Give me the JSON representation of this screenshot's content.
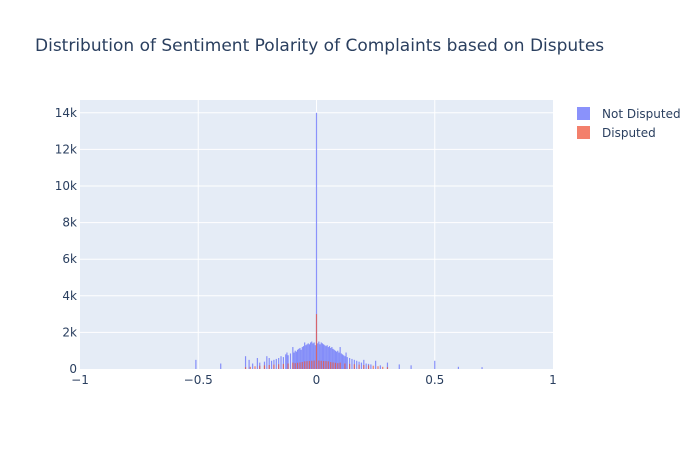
{
  "chart_data": {
    "type": "bar",
    "title": "Distribution of Sentiment Polarity of Complaints based on Disputes",
    "xlabel": "",
    "ylabel": "",
    "xlim": [
      -1,
      1
    ],
    "ylim": [
      0,
      14700
    ],
    "x_ticks": [
      -1,
      -0.5,
      0,
      0.5,
      1
    ],
    "x_tick_labels": [
      "−1",
      "−0.5",
      "0",
      "0.5",
      "1"
    ],
    "y_ticks": [
      0,
      2000,
      4000,
      6000,
      8000,
      10000,
      12000,
      14000
    ],
    "y_tick_labels": [
      "0",
      "2k",
      "4k",
      "6k",
      "8k",
      "10k",
      "12k",
      "14k"
    ],
    "grid": true,
    "legend_position": "top-right",
    "bin_width": 0.005,
    "series": [
      {
        "name": "Not Disputed",
        "color": "#636efa",
        "opacity": 0.75,
        "points": [
          [
            -0.51,
            500
          ],
          [
            -0.405,
            300
          ],
          [
            -0.3,
            700
          ],
          [
            -0.285,
            500
          ],
          [
            -0.27,
            300
          ],
          [
            -0.25,
            600
          ],
          [
            -0.24,
            350
          ],
          [
            -0.22,
            400
          ],
          [
            -0.21,
            700
          ],
          [
            -0.2,
            600
          ],
          [
            -0.19,
            450
          ],
          [
            -0.18,
            500
          ],
          [
            -0.17,
            550
          ],
          [
            -0.16,
            600
          ],
          [
            -0.15,
            700
          ],
          [
            -0.14,
            650
          ],
          [
            -0.13,
            800
          ],
          [
            -0.125,
            900
          ],
          [
            -0.12,
            750
          ],
          [
            -0.11,
            850
          ],
          [
            -0.1,
            1200
          ],
          [
            -0.095,
            900
          ],
          [
            -0.09,
            1000
          ],
          [
            -0.085,
            950
          ],
          [
            -0.08,
            1050
          ],
          [
            -0.075,
            1100
          ],
          [
            -0.07,
            1150
          ],
          [
            -0.065,
            1050
          ],
          [
            -0.06,
            1200
          ],
          [
            -0.055,
            1250
          ],
          [
            -0.05,
            1450
          ],
          [
            -0.045,
            1300
          ],
          [
            -0.04,
            1350
          ],
          [
            -0.035,
            1400
          ],
          [
            -0.03,
            1350
          ],
          [
            -0.025,
            1450
          ],
          [
            -0.02,
            1500
          ],
          [
            -0.015,
            1400
          ],
          [
            -0.01,
            1450
          ],
          [
            -0.005,
            1300
          ],
          [
            0.0,
            14000
          ],
          [
            0.005,
            1400
          ],
          [
            0.01,
            1500
          ],
          [
            0.015,
            1350
          ],
          [
            0.02,
            1450
          ],
          [
            0.025,
            1400
          ],
          [
            0.03,
            1350
          ],
          [
            0.035,
            1300
          ],
          [
            0.04,
            1250
          ],
          [
            0.045,
            1300
          ],
          [
            0.05,
            1200
          ],
          [
            0.055,
            1250
          ],
          [
            0.06,
            1150
          ],
          [
            0.065,
            1200
          ],
          [
            0.07,
            1100
          ],
          [
            0.075,
            1050
          ],
          [
            0.08,
            1000
          ],
          [
            0.085,
            950
          ],
          [
            0.09,
            1000
          ],
          [
            0.095,
            900
          ],
          [
            0.1,
            1200
          ],
          [
            0.105,
            850
          ],
          [
            0.11,
            800
          ],
          [
            0.115,
            750
          ],
          [
            0.12,
            700
          ],
          [
            0.125,
            900
          ],
          [
            0.13,
            650
          ],
          [
            0.14,
            600
          ],
          [
            0.15,
            550
          ],
          [
            0.16,
            500
          ],
          [
            0.17,
            450
          ],
          [
            0.18,
            400
          ],
          [
            0.19,
            350
          ],
          [
            0.2,
            500
          ],
          [
            0.21,
            300
          ],
          [
            0.22,
            280
          ],
          [
            0.23,
            250
          ],
          [
            0.25,
            450
          ],
          [
            0.27,
            200
          ],
          [
            0.3,
            350
          ],
          [
            0.35,
            250
          ],
          [
            0.4,
            200
          ],
          [
            0.5,
            450
          ],
          [
            0.6,
            120
          ],
          [
            0.7,
            100
          ]
        ]
      },
      {
        "name": "Disputed",
        "color": "#ef553b",
        "opacity": 0.75,
        "points": [
          [
            -0.3,
            100
          ],
          [
            -0.28,
            120
          ],
          [
            -0.26,
            150
          ],
          [
            -0.24,
            180
          ],
          [
            -0.22,
            200
          ],
          [
            -0.2,
            220
          ],
          [
            -0.18,
            240
          ],
          [
            -0.16,
            260
          ],
          [
            -0.14,
            280
          ],
          [
            -0.12,
            300
          ],
          [
            -0.1,
            350
          ],
          [
            -0.09,
            320
          ],
          [
            -0.08,
            340
          ],
          [
            -0.07,
            360
          ],
          [
            -0.06,
            380
          ],
          [
            -0.05,
            420
          ],
          [
            -0.04,
            430
          ],
          [
            -0.03,
            440
          ],
          [
            -0.02,
            450
          ],
          [
            -0.01,
            460
          ],
          [
            0.0,
            3000
          ],
          [
            0.01,
            460
          ],
          [
            0.02,
            450
          ],
          [
            0.03,
            440
          ],
          [
            0.04,
            430
          ],
          [
            0.05,
            420
          ],
          [
            0.06,
            380
          ],
          [
            0.07,
            360
          ],
          [
            0.08,
            340
          ],
          [
            0.09,
            320
          ],
          [
            0.1,
            350
          ],
          [
            0.12,
            300
          ],
          [
            0.14,
            280
          ],
          [
            0.16,
            260
          ],
          [
            0.18,
            240
          ],
          [
            0.2,
            220
          ],
          [
            0.22,
            200
          ],
          [
            0.24,
            180
          ],
          [
            0.26,
            150
          ],
          [
            0.28,
            120
          ],
          [
            0.3,
            100
          ]
        ]
      }
    ]
  },
  "legend": {
    "items": [
      {
        "label": "Not Disputed",
        "color": "#636efa"
      },
      {
        "label": "Disputed",
        "color": "#ef553b"
      }
    ]
  }
}
